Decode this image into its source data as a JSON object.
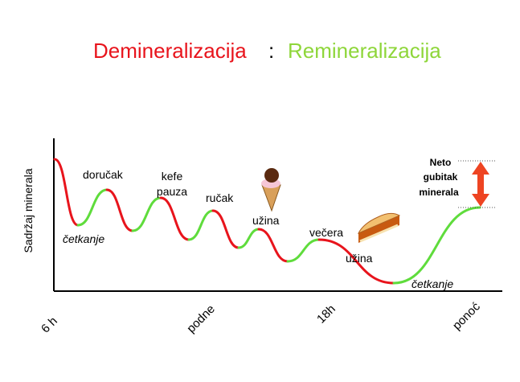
{
  "title": {
    "part1": "Demineralizacija",
    "separator": ":",
    "part2": "Remineralizacija"
  },
  "y_axis_label": "Sadržaj minerala",
  "x_labels": [
    "6 h",
    "podne",
    "18h",
    "ponoć"
  ],
  "annotations": {
    "brushing_morning": "četkanje",
    "breakfast": "doručak",
    "coffee_break": [
      "kefe",
      "pauza"
    ],
    "lunch": "ručak",
    "snack1": "užina",
    "dinner": "večera",
    "snack2": "užina",
    "brushing_evening": "četkanje",
    "net_loss": [
      "Neto",
      "gubitak",
      "minerala"
    ]
  }
}
